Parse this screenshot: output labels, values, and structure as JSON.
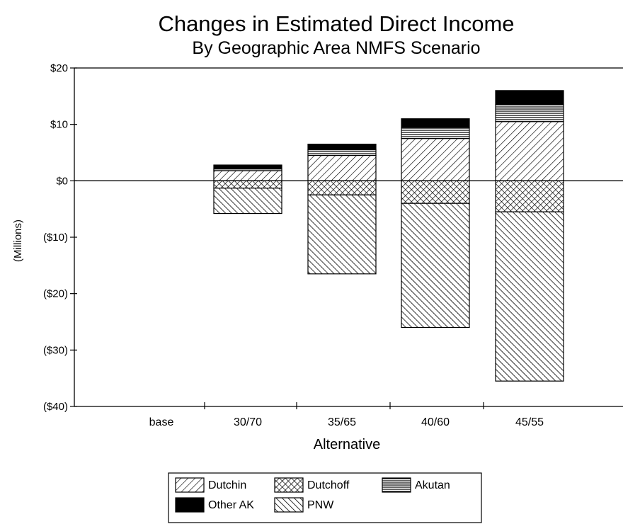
{
  "chart_data": {
    "type": "bar",
    "stacked": true,
    "title": "Changes in Estimated Direct Income",
    "subtitle": "By Geographic Area NMFS Scenario",
    "xlabel": "Alternative",
    "ylabel": "(Millions)",
    "categories": [
      "base",
      "30/70",
      "35/65",
      "40/60",
      "45/55"
    ],
    "ylim": [
      -40,
      20
    ],
    "yticks": [
      {
        "value": 20,
        "label": "$20"
      },
      {
        "value": 10,
        "label": "$10"
      },
      {
        "value": 0,
        "label": "$0"
      },
      {
        "value": -10,
        "label": "($10)"
      },
      {
        "value": -20,
        "label": "($20)"
      },
      {
        "value": -30,
        "label": "($30)"
      },
      {
        "value": -40,
        "label": "($40)"
      }
    ],
    "series": [
      {
        "name": "Dutchin",
        "pattern": "diag-right",
        "values": [
          0,
          1.8,
          4.5,
          7.5,
          10.5
        ]
      },
      {
        "name": "Dutchoff",
        "pattern": "crosshatch",
        "values": [
          0,
          -1.3,
          -2.5,
          -4,
          -5.5
        ]
      },
      {
        "name": "Akutan",
        "pattern": "horizontal",
        "values": [
          0,
          0.3,
          1,
          2,
          3
        ]
      },
      {
        "name": "Other AK",
        "pattern": "solid",
        "values": [
          0,
          0.7,
          1,
          1.5,
          2.5
        ]
      },
      {
        "name": "PNW",
        "pattern": "diag-left",
        "values": [
          0,
          -4.5,
          -14,
          -22,
          -30
        ]
      }
    ],
    "legend_position": "bottom-center",
    "grid": false
  }
}
